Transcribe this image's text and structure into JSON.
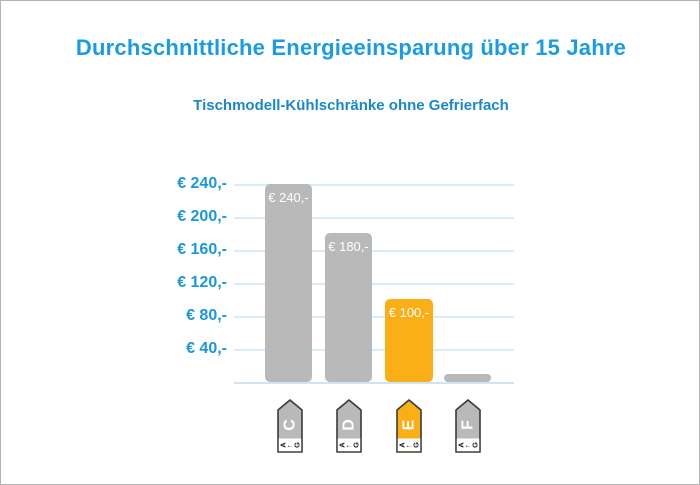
{
  "title": "Durchschnittliche Energieeinsparung über 15 Jahre",
  "subtitle": "Tischmodell-Kühlschränke ohne Gefrierfach",
  "colors": {
    "title_blue": "#1a9ce4",
    "subtitle_blue": "#1b87c9",
    "axis_label_blue": "#1a96e0",
    "gridline_blue": "#d7ebf9",
    "bar_gray": "#b9b9b9",
    "bar_orange": "#f9af15",
    "badge_border": "#3a3a3a",
    "badge_strip_white": "#ffffff",
    "bar_value_text": "#ffffff"
  },
  "chart_data": {
    "type": "bar",
    "title": "Durchschnittliche Energieeinsparung über 15 Jahre",
    "subtitle": "Tischmodell-Kühlschränke ohne Gefrierfach",
    "categories": [
      "C",
      "D",
      "E",
      "F"
    ],
    "values": [
      240,
      180,
      100,
      10
    ],
    "bar_labels": [
      "€ 240,-",
      "€ 180,-",
      "€ 100,-",
      ""
    ],
    "highlighted_category": "E",
    "y_ticks": [
      "€ 240,-",
      "€ 200,-",
      "€ 160,-",
      "€ 120,-",
      "€ 80,-",
      "€ 40,-"
    ],
    "y_tick_values": [
      240,
      200,
      160,
      120,
      80,
      40
    ],
    "ylim": [
      0,
      252
    ],
    "xlabel": "",
    "ylabel": "",
    "grid": "horizontal-light-blue",
    "legend": "none",
    "currency": "EUR",
    "unit_note": "savings in euro over 15 years"
  },
  "energy_badges": [
    {
      "class": "C",
      "color": "#b9b9b9",
      "scale": {
        "best": "A",
        "arrow": "←",
        "worst": "G"
      }
    },
    {
      "class": "D",
      "color": "#b9b9b9",
      "scale": {
        "best": "A",
        "arrow": "←",
        "worst": "G"
      }
    },
    {
      "class": "E",
      "color": "#f9af15",
      "scale": {
        "best": "A",
        "arrow": "←",
        "worst": "G"
      }
    },
    {
      "class": "F",
      "color": "#b9b9b9",
      "scale": {
        "best": "A",
        "arrow": "←",
        "worst": "G"
      }
    }
  ]
}
